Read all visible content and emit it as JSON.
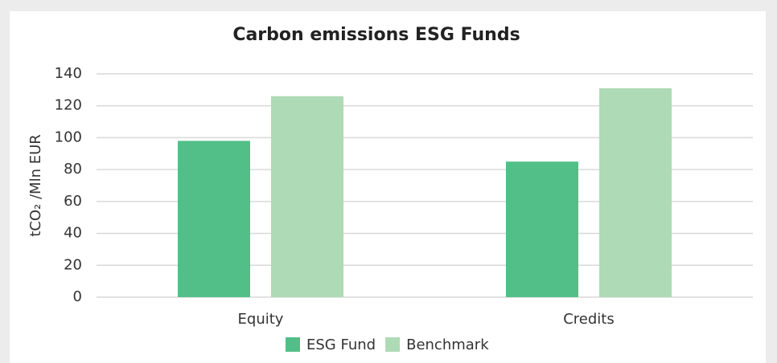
{
  "chart_data": {
    "type": "bar",
    "title": "Carbon emissions ESG Funds",
    "ylabel": "tCO₂ /Mln EUR",
    "categories": [
      "Equity",
      "Credits"
    ],
    "series": [
      {
        "name": "ESG Fund",
        "color": "#52bf88",
        "values": [
          98,
          85
        ]
      },
      {
        "name": "Benchmark",
        "color": "#aedab5",
        "values": [
          126,
          131
        ]
      }
    ],
    "ylim": [
      0,
      140
    ],
    "yticks": [
      0,
      20,
      40,
      60,
      80,
      100,
      120,
      140
    ],
    "grid": true,
    "legend": "bottom"
  }
}
